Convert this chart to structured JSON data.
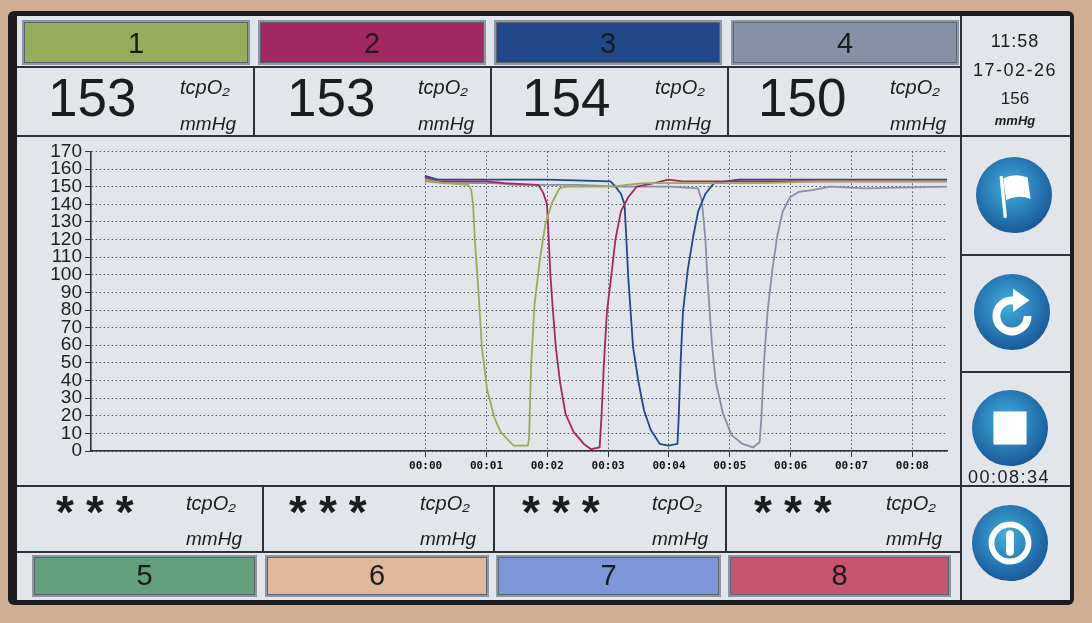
{
  "chart_data": {
    "type": "line",
    "series": [
      {
        "name": "1",
        "color": "#98ad5c",
        "x": [
          0,
          0.3,
          0.7,
          0.75,
          0.78,
          0.81,
          0.86,
          0.925,
          1.01,
          1.13,
          1.23,
          1.39,
          1.45,
          1.68,
          1.7,
          1.735,
          1.79,
          1.88,
          1.97,
          2.08,
          2.2,
          2.31,
          3.1,
          3.3,
          3.6,
          4.5,
          5.5,
          6.5,
          7.5,
          8.57
        ],
        "values": [
          154,
          152,
          151,
          148,
          140,
          119,
          95,
          59,
          35,
          19,
          11,
          5,
          3,
          3,
          7,
          49,
          83,
          109,
          129,
          141,
          149,
          150,
          150,
          151,
          152,
          152,
          152,
          153,
          153,
          153
        ]
      },
      {
        "name": "2",
        "color": "#a3285f",
        "x": [
          0,
          0.2,
          1.0,
          1.3,
          1.85,
          1.909,
          1.938,
          1.995,
          2.024,
          2.053,
          2.094,
          2.14,
          2.21,
          2.3,
          2.43,
          2.6,
          2.72,
          2.86,
          2.89,
          2.93,
          2.98,
          3.05,
          3.12,
          3.21,
          3.33,
          3.47,
          3.76,
          3.99,
          4.22,
          5.5,
          7,
          8.57
        ],
        "values": [
          155,
          153,
          153,
          152,
          151,
          148,
          146,
          140,
          120,
          99,
          79,
          59,
          39,
          21,
          11,
          4,
          1,
          2,
          19,
          49,
          79,
          99,
          120,
          136,
          144,
          150,
          152,
          154,
          153,
          153,
          153,
          153
        ]
      },
      {
        "name": "3",
        "color": "#22488a",
        "x": [
          0,
          0.2,
          1,
          2,
          3.04,
          3.12,
          3.21,
          3.27,
          3.3,
          3.33,
          3.37,
          3.41,
          3.5,
          3.59,
          3.7,
          3.85,
          3.99,
          4.14,
          4.16,
          4.19,
          4.23,
          4.31,
          4.4,
          4.48,
          4.6,
          4.74,
          5.15,
          6,
          7,
          8.57
        ],
        "values": [
          156,
          154,
          154,
          154,
          153,
          150,
          146,
          140,
          120,
          99,
          79,
          59,
          39,
          23,
          12,
          4,
          3,
          4,
          19,
          49,
          79,
          103,
          122,
          136,
          146,
          152,
          154,
          154,
          154,
          154
        ]
      },
      {
        "name": "4",
        "color": "#8890a8",
        "x": [
          0,
          0.3,
          1.1,
          1.5,
          2.5,
          3.2,
          4.0,
          4.48,
          4.54,
          4.6,
          4.63,
          4.67,
          4.71,
          4.77,
          4.89,
          5.03,
          5.21,
          5.38,
          5.49,
          5.52,
          5.56,
          5.62,
          5.7,
          5.78,
          5.87,
          5.99,
          6.13,
          6.36,
          6.65,
          7.23,
          8.57
        ],
        "values": [
          153,
          152,
          152,
          151,
          151,
          150,
          150,
          149,
          142,
          120,
          99,
          79,
          59,
          39,
          21,
          9,
          4,
          2,
          5,
          19,
          49,
          79,
          103,
          122,
          136,
          144,
          147,
          148,
          150,
          149,
          150
        ]
      }
    ],
    "xlim": [
      -5.5,
      8.57
    ],
    "xticks": [
      {
        "value": 0,
        "label": "00:00"
      },
      {
        "value": 1,
        "label": "00:01"
      },
      {
        "value": 2,
        "label": "00:02"
      },
      {
        "value": 3,
        "label": "00:03"
      },
      {
        "value": 4,
        "label": "00:04"
      },
      {
        "value": 5,
        "label": "00:05"
      },
      {
        "value": 6,
        "label": "00:06"
      },
      {
        "value": 7,
        "label": "00:07"
      },
      {
        "value": 8,
        "label": "00:08"
      }
    ],
    "ylim": [
      0,
      170
    ],
    "yticks": [
      0,
      10,
      20,
      30,
      40,
      50,
      60,
      70,
      80,
      90,
      100,
      110,
      120,
      130,
      140,
      150,
      160,
      170
    ],
    "grid": true,
    "legend": "top",
    "annotations": [
      "153",
      "tcpO₂",
      "mmHg",
      "153",
      "tcpO₂",
      "mmHg",
      "154",
      "tcpO₂",
      "mmHg",
      "150",
      "tcpO₂",
      "mmHg",
      "11:58",
      "17-02-26",
      "156",
      "mmHg",
      "00:08:34",
      "***",
      "tcpO₂",
      "mmHg",
      "***",
      "tcpO₂",
      "mmHg",
      "***",
      "tcpO₂",
      "mmHg",
      "***",
      "tcpO₂",
      "mmHg",
      "5",
      "6",
      "7",
      "8"
    ]
  }
}
